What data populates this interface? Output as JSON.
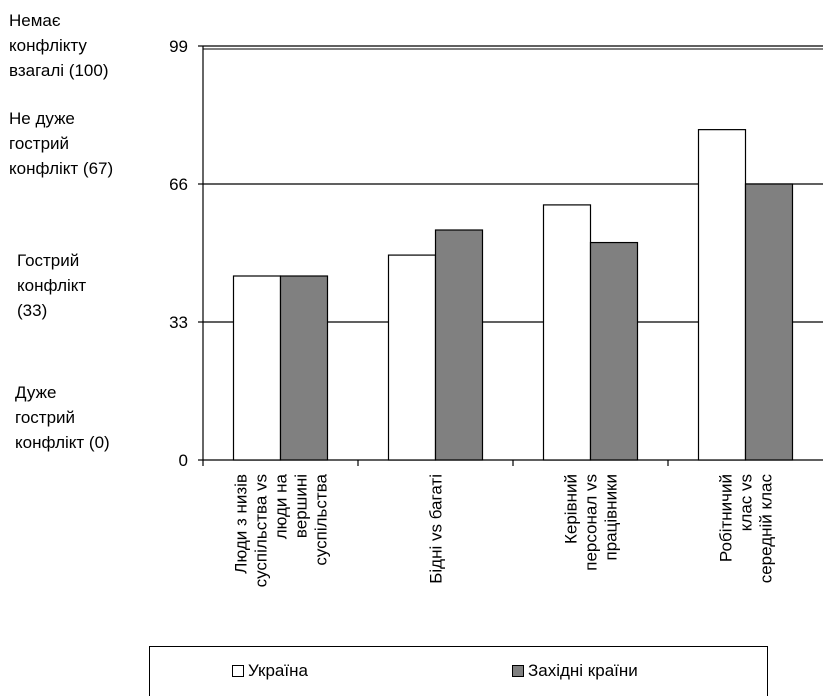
{
  "chart_data": {
    "type": "bar",
    "categories": [
      [
        "Люди з низів",
        "суспільства vs",
        "люди на",
        "вершині",
        "суспільства"
      ],
      [
        "Бідні vs багаті"
      ],
      [
        "Керівний",
        "персонал vs",
        "працівники"
      ],
      [
        "Робітничий",
        "клас vs",
        "середній клас"
      ]
    ],
    "series": [
      {
        "name": "Україна",
        "values": [
          44,
          49,
          61,
          79
        ],
        "color": "#ffffff"
      },
      {
        "name": "Західні країни",
        "values": [
          44,
          55,
          52,
          66
        ],
        "color": "#808080"
      }
    ],
    "ylim": [
      0,
      99
    ],
    "yticks": [
      0,
      33,
      66,
      99
    ],
    "gridlines": [
      33,
      66,
      99
    ],
    "annotations": [
      {
        "lines": [
          "Немає",
          "конфлікту",
          "взагалі (100)"
        ]
      },
      {
        "lines": [
          "Не дуже",
          "гострий",
          "конфлікт (67)"
        ]
      },
      {
        "lines": [
          "Гострий",
          "конфлікт",
          "(33)"
        ]
      },
      {
        "lines": [
          "Дуже",
          "гострий",
          "конфлікт (0)"
        ]
      }
    ],
    "legend_position": "bottom"
  }
}
